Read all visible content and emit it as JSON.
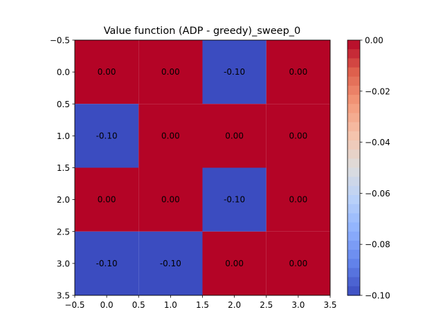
{
  "chart_data": {
    "type": "heatmap",
    "title": "Value function (ADP - greedy)_sweep_0",
    "xlabel": "",
    "ylabel": "",
    "xlim": [
      -0.5,
      3.5
    ],
    "ylim": [
      3.5,
      -0.5
    ],
    "x_ticks": [
      -0.5,
      0.0,
      0.5,
      1.0,
      1.5,
      2.0,
      2.5,
      3.0,
      3.5
    ],
    "x_tick_labels": [
      "−0.5",
      "0.0",
      "0.5",
      "1.0",
      "1.5",
      "2.0",
      "2.5",
      "3.0",
      "3.5"
    ],
    "y_ticks": [
      -0.5,
      0.0,
      0.5,
      1.0,
      1.5,
      2.0,
      2.5,
      3.0,
      3.5
    ],
    "y_tick_labels": [
      "−0.5",
      "0.0",
      "0.5",
      "1.0",
      "1.5",
      "2.0",
      "2.5",
      "3.0",
      "3.5"
    ],
    "values": [
      [
        0.0,
        0.0,
        -0.1,
        0.0
      ],
      [
        -0.1,
        0.0,
        0.0,
        0.0
      ],
      [
        0.0,
        0.0,
        -0.1,
        0.0
      ],
      [
        -0.1,
        -0.1,
        0.0,
        0.0
      ]
    ],
    "cell_labels": [
      [
        "0.00",
        "0.00",
        "-0.10",
        "0.00"
      ],
      [
        "-0.10",
        "0.00",
        "0.00",
        "0.00"
      ],
      [
        "0.00",
        "0.00",
        "-0.10",
        "0.00"
      ],
      [
        "-0.10",
        "-0.10",
        "0.00",
        "0.00"
      ]
    ],
    "colormap": "coolwarm",
    "colorbar": {
      "range": [
        -0.1,
        0.0
      ],
      "ticks": [
        0.0,
        -0.02,
        -0.04,
        -0.06,
        -0.08,
        -0.1
      ],
      "tick_labels": [
        "0.00",
        "−0.02",
        "−0.04",
        "−0.06",
        "−0.08",
        "−0.10"
      ]
    },
    "grid": false,
    "colors": {
      "max": "#b40426",
      "min": "#3b4cc0"
    }
  }
}
